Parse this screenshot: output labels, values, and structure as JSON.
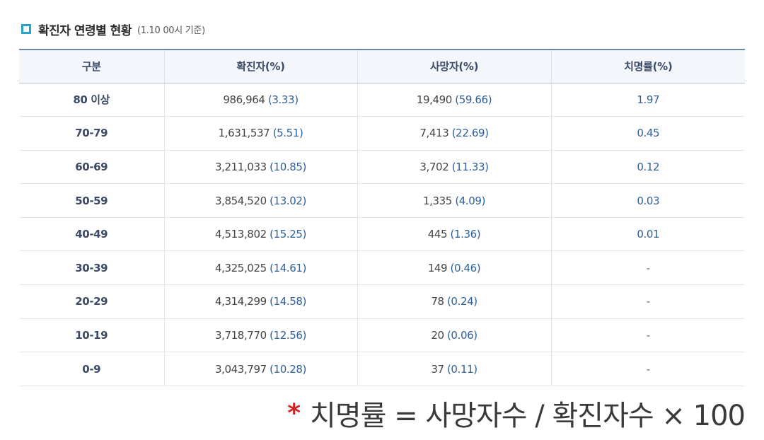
{
  "header": {
    "title": "확진자 연령별 현황",
    "subtitle": "(1.10 00시 기준)",
    "icon": "square-bullet-icon",
    "accent": "#2aa3c9"
  },
  "table": {
    "columns": [
      "구분",
      "확진자(%)",
      "사망자(%)",
      "치명률(%)"
    ],
    "rows": [
      {
        "category": "80 이상",
        "confirmed": "986,964",
        "confirmed_pct": "(3.33)",
        "deaths": "19,490",
        "deaths_pct": "(59.66)",
        "fatality": "1.97"
      },
      {
        "category": "70-79",
        "confirmed": "1,631,537",
        "confirmed_pct": "(5.51)",
        "deaths": "7,413",
        "deaths_pct": "(22.69)",
        "fatality": "0.45"
      },
      {
        "category": "60-69",
        "confirmed": "3,211,033",
        "confirmed_pct": "(10.85)",
        "deaths": "3,702",
        "deaths_pct": "(11.33)",
        "fatality": "0.12"
      },
      {
        "category": "50-59",
        "confirmed": "3,854,520",
        "confirmed_pct": "(13.02)",
        "deaths": "1,335",
        "deaths_pct": "(4.09)",
        "fatality": "0.03"
      },
      {
        "category": "40-49",
        "confirmed": "4,513,802",
        "confirmed_pct": "(15.25)",
        "deaths": "445",
        "deaths_pct": "(1.36)",
        "fatality": "0.01"
      },
      {
        "category": "30-39",
        "confirmed": "4,325,025",
        "confirmed_pct": "(14.61)",
        "deaths": "149",
        "deaths_pct": "(0.46)",
        "fatality": "-"
      },
      {
        "category": "20-29",
        "confirmed": "4,314,299",
        "confirmed_pct": "(14.58)",
        "deaths": "78",
        "deaths_pct": "(0.24)",
        "fatality": "-"
      },
      {
        "category": "10-19",
        "confirmed": "3,718,770",
        "confirmed_pct": "(12.56)",
        "deaths": "20",
        "deaths_pct": "(0.06)",
        "fatality": "-"
      },
      {
        "category": "0-9",
        "confirmed": "3,043,797",
        "confirmed_pct": "(10.28)",
        "deaths": "37",
        "deaths_pct": "(0.11)",
        "fatality": "-"
      }
    ]
  },
  "formula": {
    "star": "*",
    "text": "치명률 = 사망자수 / 확진자수 × 100",
    "star_color": "#d32222"
  }
}
